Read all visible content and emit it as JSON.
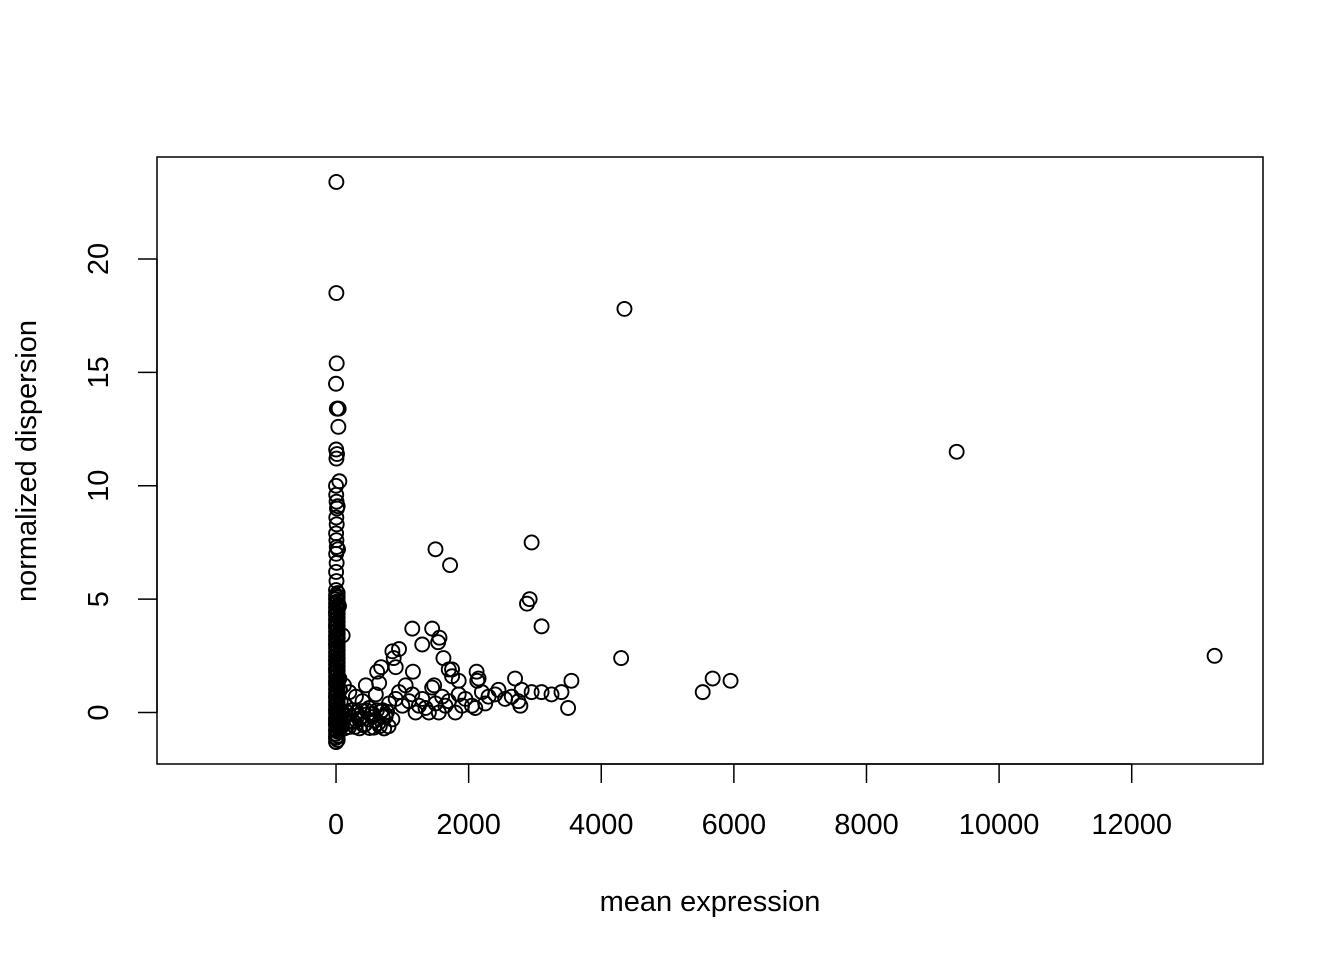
{
  "chart_data": {
    "type": "scatter",
    "title": "",
    "xlabel": "mean expression",
    "ylabel": "normalized dispersion",
    "xlim": [
      -2700,
      13980
    ],
    "ylim": [
      -2.27,
      24.5
    ],
    "xticks": [
      0,
      2000,
      4000,
      6000,
      8000,
      10000,
      12000
    ],
    "xtick_labels": [
      "0",
      "2000",
      "4000",
      "6000",
      "8000",
      "10000",
      "12000"
    ],
    "yticks": [
      0,
      5,
      10,
      15,
      20
    ],
    "ytick_labels": [
      "0",
      "5",
      "10",
      "15",
      "20"
    ],
    "grid": false,
    "legend": "none",
    "marker": "open-circle",
    "colors": {
      "points": "#000000",
      "axes": "#000000",
      "background": "#ffffff"
    },
    "points": [
      [
        5,
        23.4
      ],
      [
        5,
        18.5
      ],
      [
        10,
        15.4
      ],
      [
        0,
        14.5
      ],
      [
        12,
        13.4
      ],
      [
        20,
        13.4
      ],
      [
        30,
        13.4
      ],
      [
        40,
        13.4
      ],
      [
        35,
        12.6
      ],
      [
        2,
        11.6
      ],
      [
        6,
        11.2
      ],
      [
        15,
        11.4
      ],
      [
        50,
        10.2
      ],
      [
        0,
        10.0
      ],
      [
        3,
        9.6
      ],
      [
        8,
        9.3
      ],
      [
        14,
        9.0
      ],
      [
        25,
        9.1
      ],
      [
        4,
        8.6
      ],
      [
        10,
        8.3
      ],
      [
        1,
        7.9
      ],
      [
        6,
        7.6
      ],
      [
        11,
        7.3
      ],
      [
        30,
        7.2
      ],
      [
        2,
        7.0
      ],
      [
        9,
        6.6
      ],
      [
        1,
        6.2
      ],
      [
        7,
        5.8
      ],
      [
        0,
        5.4
      ],
      [
        4,
        5.1
      ],
      [
        20,
        4.9
      ],
      [
        45,
        4.7
      ],
      [
        1,
        4.4
      ],
      [
        6,
        4.1
      ],
      [
        0,
        3.8
      ],
      [
        12,
        3.6
      ],
      [
        3,
        3.3
      ],
      [
        100,
        3.4
      ],
      [
        1,
        3.0
      ],
      [
        8,
        2.7
      ],
      [
        2,
        2.3
      ],
      [
        15,
        2.1
      ],
      [
        0,
        1.9
      ],
      [
        5,
        1.6
      ],
      [
        1,
        1.3
      ],
      [
        9,
        1.0
      ],
      [
        0,
        0.7
      ],
      [
        4,
        0.4
      ],
      [
        1,
        0.1
      ],
      [
        7,
        -0.2
      ],
      [
        0,
        -0.5
      ],
      [
        2,
        -0.8
      ],
      [
        0,
        -1.1
      ],
      [
        3,
        -1.3
      ],
      [
        50,
        1.5
      ],
      [
        60,
        1.0
      ],
      [
        70,
        0.5
      ],
      [
        80,
        0.0
      ],
      [
        90,
        -0.6
      ],
      [
        120,
        1.2
      ],
      [
        150,
        0.3
      ],
      [
        180,
        -0.4
      ],
      [
        200,
        0.9
      ],
      [
        250,
        0.1
      ],
      [
        300,
        0.7
      ],
      [
        350,
        -0.3
      ],
      [
        400,
        0.5
      ],
      [
        450,
        1.2
      ],
      [
        500,
        0.2
      ],
      [
        550,
        -0.2
      ],
      [
        600,
        0.8
      ],
      [
        650,
        1.3
      ],
      [
        700,
        0.1
      ],
      [
        750,
        -0.1
      ],
      [
        800,
        0.4
      ],
      [
        850,
        -0.3
      ],
      [
        900,
        0.6
      ],
      [
        950,
        0.9
      ],
      [
        1000,
        0.3
      ],
      [
        1050,
        1.2
      ],
      [
        1100,
        0.5
      ],
      [
        1150,
        0.8
      ],
      [
        1200,
        0.0
      ],
      [
        1250,
        0.3
      ],
      [
        1300,
        0.6
      ],
      [
        1350,
        0.2
      ],
      [
        1400,
        0.0
      ],
      [
        1450,
        1.1
      ],
      [
        1500,
        0.4
      ],
      [
        1550,
        0.0
      ],
      [
        1600,
        0.7
      ],
      [
        1650,
        0.3
      ],
      [
        1700,
        0.5
      ],
      [
        1750,
        1.9
      ],
      [
        1800,
        0.0
      ],
      [
        1850,
        0.8
      ],
      [
        1900,
        0.3
      ],
      [
        1950,
        0.6
      ],
      [
        2050,
        0.3
      ],
      [
        2100,
        0.2
      ],
      [
        2150,
        1.5
      ],
      [
        2200,
        0.9
      ],
      [
        2250,
        0.4
      ],
      [
        2300,
        0.7
      ],
      [
        2400,
        0.8
      ],
      [
        2450,
        1.0
      ],
      [
        2550,
        0.6
      ],
      [
        2650,
        0.7
      ],
      [
        2750,
        0.5
      ],
      [
        2800,
        1.0
      ],
      [
        2950,
        0.9
      ],
      [
        3100,
        0.9
      ],
      [
        3250,
        0.8
      ],
      [
        3400,
        0.9
      ],
      [
        3500,
        0.2
      ],
      [
        620,
        1.8
      ],
      [
        680,
        2.0
      ],
      [
        850,
        2.7
      ],
      [
        870,
        2.4
      ],
      [
        900,
        2.0
      ],
      [
        950,
        2.8
      ],
      [
        1150,
        3.7
      ],
      [
        1160,
        1.8
      ],
      [
        1300,
        3.0
      ],
      [
        1450,
        3.7
      ],
      [
        1480,
        1.2
      ],
      [
        1500,
        7.2
      ],
      [
        1540,
        3.1
      ],
      [
        1560,
        3.3
      ],
      [
        1620,
        2.4
      ],
      [
        1700,
        1.9
      ],
      [
        1720,
        6.5
      ],
      [
        1750,
        1.6
      ],
      [
        1850,
        1.4
      ],
      [
        2120,
        1.8
      ],
      [
        2130,
        1.4
      ],
      [
        2700,
        1.5
      ],
      [
        2780,
        0.3
      ],
      [
        2880,
        4.8
      ],
      [
        2920,
        5.0
      ],
      [
        2950,
        7.5
      ],
      [
        3100,
        3.8
      ],
      [
        3550,
        1.4
      ],
      [
        4300,
        2.4
      ],
      [
        4350,
        17.8
      ],
      [
        5530,
        0.9
      ],
      [
        5680,
        1.5
      ],
      [
        5950,
        1.4
      ],
      [
        9360,
        11.5
      ],
      [
        13250,
        2.5
      ]
    ]
  }
}
